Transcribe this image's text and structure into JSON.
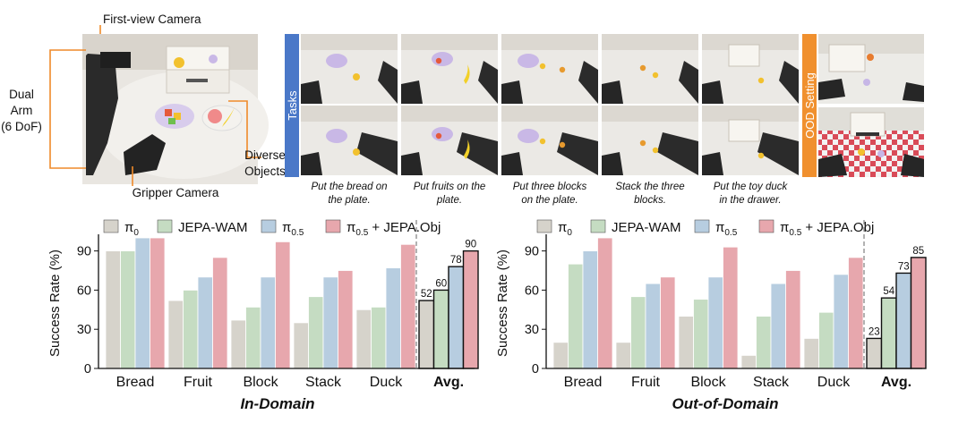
{
  "setup": {
    "labels": {
      "first_view": "First-view Camera",
      "dual_arm_1": "Dual",
      "dual_arm_2": "Arm",
      "dual_arm_3": "(6 DoF)",
      "diverse_1": "Diverse",
      "diverse_2": "Objects",
      "gripper": "Gripper Camera"
    }
  },
  "tasks_panel": {
    "side_label": "Tasks",
    "ood_label": "OOD Setting",
    "captions": [
      [
        "Put the bread on",
        "the plate."
      ],
      [
        "Put fruits on the",
        "plate."
      ],
      [
        "Put three blocks",
        "on the plate."
      ],
      [
        "Stack the three",
        "blocks."
      ],
      [
        "Put the toy duck",
        "in the drawer."
      ]
    ]
  },
  "colors": {
    "pi0": "#d6d3cb",
    "jepa_wam": "#c5dcc2",
    "pi05": "#b7cde0",
    "pi05_obj": "#e7a7ad",
    "blue_band": "#4a78c8",
    "orange_band": "#f0902e",
    "accent_orange": "#ef8a2a"
  },
  "legend": {
    "pi0": "π",
    "pi0_sub": "0",
    "jepa": "JEPA-WAM",
    "pi05": "π",
    "pi05_sub": "0.5",
    "pi05obj": "π",
    "pi05obj_sub": "0.5",
    "pi05obj_suffix": " + JEPA.Obj"
  },
  "chart_data": [
    {
      "type": "bar",
      "title": "In-Domain",
      "ylabel": "Success Rate (%)",
      "ylim": [
        0,
        100
      ],
      "yticks": [
        0,
        30,
        60,
        90
      ],
      "categories": [
        "Bread",
        "Fruit",
        "Block",
        "Stack",
        "Duck",
        "Avg."
      ],
      "series": [
        {
          "name": "π0",
          "values": [
            90,
            52,
            37,
            35,
            45,
            52
          ]
        },
        {
          "name": "JEPA-WAM",
          "values": [
            90,
            60,
            47,
            55,
            47,
            60
          ]
        },
        {
          "name": "π0.5",
          "values": [
            100,
            70,
            70,
            70,
            77,
            78
          ]
        },
        {
          "name": "π0.5 + JEPA.Obj",
          "values": [
            100,
            85,
            97,
            75,
            95,
            90
          ]
        }
      ],
      "avg_labels": [
        "52",
        "60",
        "78",
        "90"
      ]
    },
    {
      "type": "bar",
      "title": "Out-of-Domain",
      "ylabel": "Success Rate (%)",
      "ylim": [
        0,
        100
      ],
      "yticks": [
        0,
        30,
        60,
        90
      ],
      "categories": [
        "Bread",
        "Fruit",
        "Block",
        "Stack",
        "Duck",
        "Avg."
      ],
      "series": [
        {
          "name": "π0",
          "values": [
            20,
            20,
            40,
            10,
            23,
            23
          ]
        },
        {
          "name": "JEPA-WAM",
          "values": [
            80,
            55,
            53,
            40,
            43,
            54
          ]
        },
        {
          "name": "π0.5",
          "values": [
            90,
            65,
            70,
            65,
            72,
            73
          ]
        },
        {
          "name": "π0.5 + JEPA.Obj",
          "values": [
            100,
            70,
            93,
            75,
            85,
            85
          ]
        }
      ],
      "avg_labels": [
        "23",
        "54",
        "73",
        "85"
      ]
    }
  ]
}
